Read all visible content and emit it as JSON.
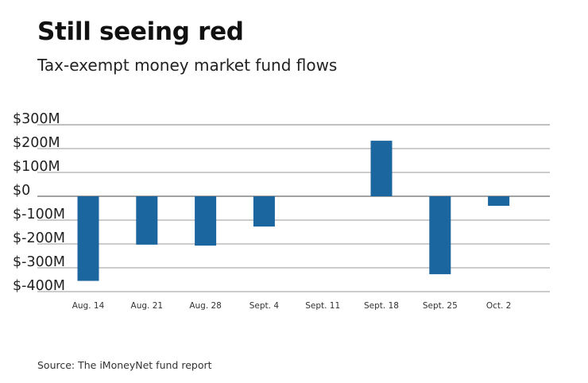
{
  "title": "Still seeing red",
  "subtitle": "Tax-exempt money market fund flows",
  "source": "Source: The iMoneyNet fund report",
  "colors": {
    "bar": "#1c669f",
    "grid": "#9a9a9a",
    "zero": "#444444"
  },
  "chart_data": {
    "type": "bar",
    "title": "Still seeing red",
    "subtitle": "Tax-exempt money market fund flows",
    "xlabel": "",
    "ylabel": "",
    "categories": [
      "Aug. 14",
      "Aug. 21",
      "Aug. 28",
      "Sept. 4",
      "Sept. 11",
      "Sept. 18",
      "Sept. 25",
      "Oct. 2"
    ],
    "values": [
      -355,
      -203,
      -207,
      -127,
      0,
      233,
      -327,
      -40
    ],
    "units": "$M",
    "ylim": [
      -400,
      300
    ],
    "yticks": [
      300,
      200,
      100,
      0,
      -100,
      -200,
      -300,
      -400
    ],
    "ytick_labels": [
      "$300M",
      "$200M",
      "$100M",
      "$0",
      "$-100M",
      "$-200M",
      "$-300M",
      "$-400M"
    ],
    "grid": true,
    "legend": "none"
  }
}
